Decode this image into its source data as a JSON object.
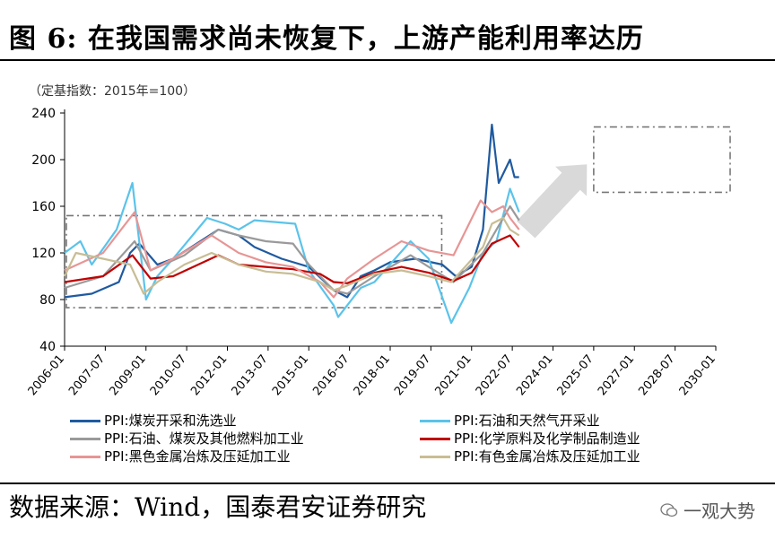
{
  "header": {
    "title": "图 6: 在我国需求尚未恢复下，上游产能利用率达历"
  },
  "footer": {
    "source": "数据来源：Wind，国泰君安证券研究",
    "watermark": "一观大势"
  },
  "chart_data": {
    "type": "line",
    "unit_note": "（定基指数：2015年=100）",
    "ylim": [
      40,
      240
    ],
    "yticks": [
      40,
      80,
      120,
      160,
      200,
      240
    ],
    "xlim": [
      "2006-01",
      "2030-01"
    ],
    "xticks": [
      "2006-01",
      "2007-07",
      "2009-01",
      "2010-07",
      "2012-01",
      "2013-07",
      "2015-01",
      "2016-07",
      "2018-01",
      "2019-07",
      "2021-01",
      "2022-07",
      "2024-01",
      "2025-07",
      "2027-01",
      "2028-07",
      "2030-01"
    ],
    "grid": false,
    "series": [
      {
        "name": "PPI:煤炭开采和洗选业",
        "color": "#1f5aa0",
        "points": [
          [
            "2006-01",
            82
          ],
          [
            "2007-01",
            85
          ],
          [
            "2008-01",
            95
          ],
          [
            "2008-06",
            120
          ],
          [
            "2008-10",
            128
          ],
          [
            "2009-06",
            110
          ],
          [
            "2010-01",
            115
          ],
          [
            "2011-01",
            130
          ],
          [
            "2011-09",
            140
          ],
          [
            "2012-06",
            135
          ],
          [
            "2013-01",
            125
          ],
          [
            "2014-01",
            115
          ],
          [
            "2015-01",
            108
          ],
          [
            "2015-12",
            88
          ],
          [
            "2016-06",
            82
          ],
          [
            "2016-12",
            100
          ],
          [
            "2017-06",
            105
          ],
          [
            "2018-01",
            112
          ],
          [
            "2018-12",
            115
          ],
          [
            "2019-12",
            110
          ],
          [
            "2020-06",
            100
          ],
          [
            "2021-01",
            108
          ],
          [
            "2021-06",
            140
          ],
          [
            "2021-10",
            230
          ],
          [
            "2022-01",
            180
          ],
          [
            "2022-06",
            200
          ],
          [
            "2022-08",
            185
          ],
          [
            "2022-10",
            185
          ]
        ]
      },
      {
        "name": "PPI:石油和天然气开采业",
        "color": "#5bc3ea",
        "points": [
          [
            "2006-01",
            120
          ],
          [
            "2006-08",
            130
          ],
          [
            "2007-01",
            110
          ],
          [
            "2007-12",
            140
          ],
          [
            "2008-07",
            180
          ],
          [
            "2009-01",
            80
          ],
          [
            "2009-06",
            100
          ],
          [
            "2010-01",
            115
          ],
          [
            "2011-04",
            150
          ],
          [
            "2011-12",
            145
          ],
          [
            "2012-06",
            140
          ],
          [
            "2013-01",
            148
          ],
          [
            "2014-07",
            145
          ],
          [
            "2015-01",
            105
          ],
          [
            "2015-12",
            75
          ],
          [
            "2016-02",
            65
          ],
          [
            "2016-12",
            90
          ],
          [
            "2017-06",
            95
          ],
          [
            "2018-10",
            130
          ],
          [
            "2019-06",
            115
          ],
          [
            "2020-04",
            60
          ],
          [
            "2020-12",
            90
          ],
          [
            "2021-06",
            120
          ],
          [
            "2021-12",
            130
          ],
          [
            "2022-06",
            175
          ],
          [
            "2022-10",
            155
          ]
        ]
      },
      {
        "name": "PPI:石油、煤炭及其他燃料加工业",
        "color": "#9a9a9a",
        "points": [
          [
            "2006-01",
            90
          ],
          [
            "2007-06",
            100
          ],
          [
            "2008-08",
            130
          ],
          [
            "2009-03",
            105
          ],
          [
            "2010-06",
            118
          ],
          [
            "2011-09",
            140
          ],
          [
            "2012-06",
            135
          ],
          [
            "2013-06",
            130
          ],
          [
            "2014-06",
            128
          ],
          [
            "2015-01",
            110
          ],
          [
            "2015-12",
            88
          ],
          [
            "2016-06",
            85
          ],
          [
            "2017-06",
            100
          ],
          [
            "2018-10",
            118
          ],
          [
            "2019-06",
            108
          ],
          [
            "2020-05",
            95
          ],
          [
            "2021-06",
            120
          ],
          [
            "2022-06",
            160
          ],
          [
            "2022-10",
            148
          ]
        ]
      },
      {
        "name": "PPI:化学原料及化学制品制造业",
        "color": "#c00000",
        "points": [
          [
            "2006-01",
            95
          ],
          [
            "2007-06",
            100
          ],
          [
            "2008-07",
            118
          ],
          [
            "2009-03",
            98
          ],
          [
            "2010-01",
            100
          ],
          [
            "2011-09",
            118
          ],
          [
            "2012-06",
            110
          ],
          [
            "2013-06",
            108
          ],
          [
            "2014-06",
            106
          ],
          [
            "2015-06",
            102
          ],
          [
            "2015-12",
            95
          ],
          [
            "2016-06",
            94
          ],
          [
            "2017-06",
            103
          ],
          [
            "2018-06",
            108
          ],
          [
            "2019-06",
            103
          ],
          [
            "2020-05",
            96
          ],
          [
            "2021-01",
            103
          ],
          [
            "2021-10",
            128
          ],
          [
            "2022-06",
            135
          ],
          [
            "2022-10",
            125
          ]
        ]
      },
      {
        "name": "PPI:黑色金属冶炼及压延加工业",
        "color": "#e79595",
        "points": [
          [
            "2006-01",
            105
          ],
          [
            "2007-06",
            120
          ],
          [
            "2008-08",
            155
          ],
          [
            "2009-03",
            105
          ],
          [
            "2010-01",
            115
          ],
          [
            "2011-06",
            135
          ],
          [
            "2012-06",
            120
          ],
          [
            "2013-06",
            112
          ],
          [
            "2014-06",
            108
          ],
          [
            "2015-06",
            95
          ],
          [
            "2015-12",
            82
          ],
          [
            "2016-06",
            98
          ],
          [
            "2017-06",
            115
          ],
          [
            "2018-06",
            130
          ],
          [
            "2019-06",
            122
          ],
          [
            "2020-05",
            118
          ],
          [
            "2021-05",
            165
          ],
          [
            "2021-10",
            155
          ],
          [
            "2022-03",
            160
          ],
          [
            "2022-06",
            150
          ],
          [
            "2022-10",
            140
          ]
        ]
      },
      {
        "name": "PPI:有色金属冶炼及压延加工业",
        "color": "#c8bd94",
        "points": [
          [
            "2006-01",
            100
          ],
          [
            "2006-06",
            120
          ],
          [
            "2007-06",
            115
          ],
          [
            "2008-06",
            110
          ],
          [
            "2008-12",
            85
          ],
          [
            "2009-06",
            95
          ],
          [
            "2010-06",
            110
          ],
          [
            "2011-06",
            120
          ],
          [
            "2012-06",
            110
          ],
          [
            "2013-06",
            104
          ],
          [
            "2014-06",
            102
          ],
          [
            "2015-06",
            95
          ],
          [
            "2015-12",
            88
          ],
          [
            "2016-06",
            92
          ],
          [
            "2017-06",
            102
          ],
          [
            "2018-06",
            105
          ],
          [
            "2019-06",
            100
          ],
          [
            "2020-04",
            95
          ],
          [
            "2021-06",
            125
          ],
          [
            "2021-10",
            145
          ],
          [
            "2022-03",
            150
          ],
          [
            "2022-06",
            140
          ],
          [
            "2022-10",
            135
          ]
        ]
      }
    ]
  }
}
